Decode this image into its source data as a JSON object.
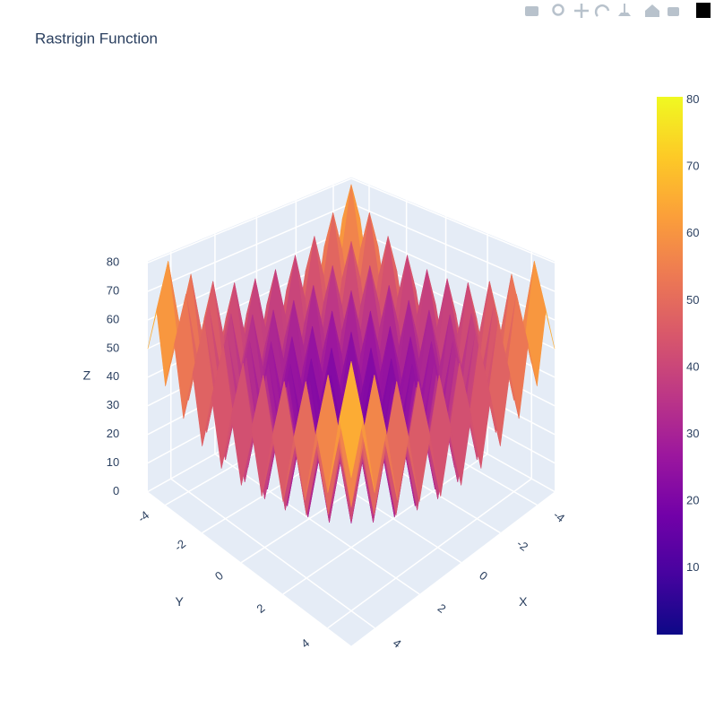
{
  "chart_data": {
    "type": "surface",
    "title": "Rastrigin Function",
    "xlabel": "X",
    "ylabel": "Y",
    "zlabel": "Z",
    "xlim": [
      -5,
      5
    ],
    "ylim": [
      -5,
      5
    ],
    "zlim": [
      0,
      80.5
    ],
    "xticks": [
      -4,
      -2,
      0,
      2,
      4
    ],
    "yticks": [
      -4,
      -2,
      0,
      2,
      4
    ],
    "zticks": [
      0,
      10,
      20,
      30,
      40,
      50,
      60,
      70,
      80
    ],
    "colorscale": [
      "#0d0887",
      "#46039f",
      "#7201a8",
      "#9c179e",
      "#bd3786",
      "#d8576b",
      "#ed7953",
      "#fb9f3a",
      "#fdca26",
      "#f0f921"
    ],
    "colorbar": {
      "range": [
        0,
        80.5
      ],
      "ticks": [
        10,
        20,
        30,
        40,
        50,
        60,
        70,
        80
      ]
    },
    "x": [
      -5,
      -4.5,
      -4,
      -3.5,
      -3,
      -2.5,
      -2,
      -1.5,
      -1,
      -0.5,
      0,
      0.5,
      1,
      1.5,
      2,
      2.5,
      3,
      3.5,
      4,
      4.5,
      5
    ],
    "y": [
      -5,
      -4.5,
      -4,
      -3.5,
      -3,
      -2.5,
      -2,
      -1.5,
      -1,
      -0.5,
      0,
      0.5,
      1,
      1.5,
      2,
      2.5,
      3,
      3.5,
      4,
      4.5,
      5
    ],
    "z": [
      [
        50,
        65.25,
        41,
        57.25,
        34,
        51.25,
        29,
        47.25,
        26,
        45.25,
        25,
        45.25,
        26,
        47.25,
        29,
        51.25,
        34,
        57.25,
        41,
        65.25,
        50
      ],
      [
        65.25,
        80.5,
        56.25,
        72.5,
        49.25,
        66.5,
        44.25,
        62.5,
        41.25,
        60.5,
        40.25,
        60.5,
        41.25,
        62.5,
        44.25,
        66.5,
        49.25,
        72.5,
        56.25,
        80.5,
        65.25
      ],
      [
        41,
        56.25,
        32,
        48.25,
        25,
        42.25,
        20,
        38.25,
        17,
        36.25,
        16,
        36.25,
        17,
        38.25,
        20,
        42.25,
        25,
        48.25,
        32,
        56.25,
        41
      ],
      [
        57.25,
        72.5,
        48.25,
        64.5,
        41.25,
        58.5,
        36.25,
        54.5,
        33.25,
        52.5,
        32.25,
        52.5,
        33.25,
        54.5,
        36.25,
        58.5,
        41.25,
        64.5,
        48.25,
        72.5,
        57.25
      ],
      [
        34,
        49.25,
        25,
        41.25,
        18,
        35.25,
        13,
        31.25,
        10,
        29.25,
        9,
        29.25,
        10,
        31.25,
        13,
        35.25,
        18,
        41.25,
        25,
        49.25,
        34
      ],
      [
        51.25,
        66.5,
        42.25,
        58.5,
        35.25,
        52.5,
        30.25,
        48.5,
        27.25,
        46.5,
        26.25,
        46.5,
        27.25,
        48.5,
        30.25,
        52.5,
        35.25,
        58.5,
        42.25,
        66.5,
        51.25
      ],
      [
        29,
        44.25,
        20,
        36.25,
        13,
        30.25,
        8,
        26.25,
        5,
        24.25,
        4,
        24.25,
        5,
        26.25,
        8,
        30.25,
        13,
        36.25,
        20,
        44.25,
        29
      ],
      [
        47.25,
        62.5,
        38.25,
        54.5,
        31.25,
        48.5,
        26.25,
        44.5,
        23.25,
        42.5,
        22.25,
        42.5,
        23.25,
        44.5,
        26.25,
        48.5,
        31.25,
        54.5,
        38.25,
        62.5,
        47.25
      ],
      [
        26,
        41.25,
        17,
        33.25,
        10,
        27.25,
        5,
        23.25,
        2,
        21.25,
        1,
        21.25,
        2,
        23.25,
        5,
        27.25,
        10,
        33.25,
        17,
        41.25,
        26
      ],
      [
        45.25,
        60.5,
        36.25,
        52.5,
        29.25,
        46.5,
        24.25,
        42.5,
        21.25,
        40.5,
        20.25,
        40.5,
        21.25,
        42.5,
        24.25,
        46.5,
        29.25,
        52.5,
        36.25,
        60.5,
        45.25
      ],
      [
        25,
        40.25,
        16,
        32.25,
        9,
        26.25,
        4,
        22.25,
        1,
        20.25,
        0,
        20.25,
        1,
        22.25,
        4,
        26.25,
        9,
        32.25,
        16,
        40.25,
        25
      ],
      [
        45.25,
        60.5,
        36.25,
        52.5,
        29.25,
        46.5,
        24.25,
        42.5,
        21.25,
        40.5,
        20.25,
        40.5,
        21.25,
        42.5,
        24.25,
        46.5,
        29.25,
        52.5,
        36.25,
        60.5,
        45.25
      ],
      [
        26,
        41.25,
        17,
        33.25,
        10,
        27.25,
        5,
        23.25,
        2,
        21.25,
        1,
        21.25,
        2,
        23.25,
        5,
        27.25,
        10,
        33.25,
        17,
        41.25,
        26
      ],
      [
        47.25,
        62.5,
        38.25,
        54.5,
        31.25,
        48.5,
        26.25,
        44.5,
        23.25,
        42.5,
        22.25,
        42.5,
        23.25,
        44.5,
        26.25,
        48.5,
        31.25,
        54.5,
        38.25,
        62.5,
        47.25
      ],
      [
        29,
        44.25,
        20,
        36.25,
        13,
        30.25,
        8,
        26.25,
        5,
        24.25,
        4,
        24.25,
        5,
        26.25,
        8,
        30.25,
        13,
        36.25,
        20,
        44.25,
        29
      ],
      [
        51.25,
        66.5,
        42.25,
        58.5,
        35.25,
        52.5,
        30.25,
        48.5,
        27.25,
        46.5,
        26.25,
        46.5,
        27.25,
        48.5,
        30.25,
        52.5,
        35.25,
        58.5,
        42.25,
        66.5,
        51.25
      ],
      [
        34,
        49.25,
        25,
        41.25,
        18,
        35.25,
        13,
        31.25,
        10,
        29.25,
        9,
        29.25,
        10,
        31.25,
        13,
        35.25,
        18,
        41.25,
        25,
        49.25,
        34
      ],
      [
        57.25,
        72.5,
        48.25,
        64.5,
        41.25,
        58.5,
        36.25,
        54.5,
        33.25,
        52.5,
        32.25,
        52.5,
        33.25,
        54.5,
        36.25,
        58.5,
        41.25,
        64.5,
        48.25,
        72.5,
        57.25
      ],
      [
        41,
        56.25,
        32,
        48.25,
        25,
        42.25,
        20,
        38.25,
        17,
        36.25,
        16,
        36.25,
        17,
        38.25,
        20,
        42.25,
        25,
        48.25,
        32,
        56.25,
        41
      ],
      [
        65.25,
        80.5,
        56.25,
        72.5,
        49.25,
        66.5,
        44.25,
        62.5,
        41.25,
        60.5,
        40.25,
        60.5,
        41.25,
        62.5,
        44.25,
        66.5,
        49.25,
        72.5,
        56.25,
        80.5,
        65.25
      ],
      [
        50,
        65.25,
        41,
        57.25,
        34,
        51.25,
        29,
        47.25,
        26,
        45.25,
        25,
        45.25,
        26,
        47.25,
        29,
        51.25,
        34,
        57.25,
        41,
        65.25,
        50
      ]
    ]
  }
}
